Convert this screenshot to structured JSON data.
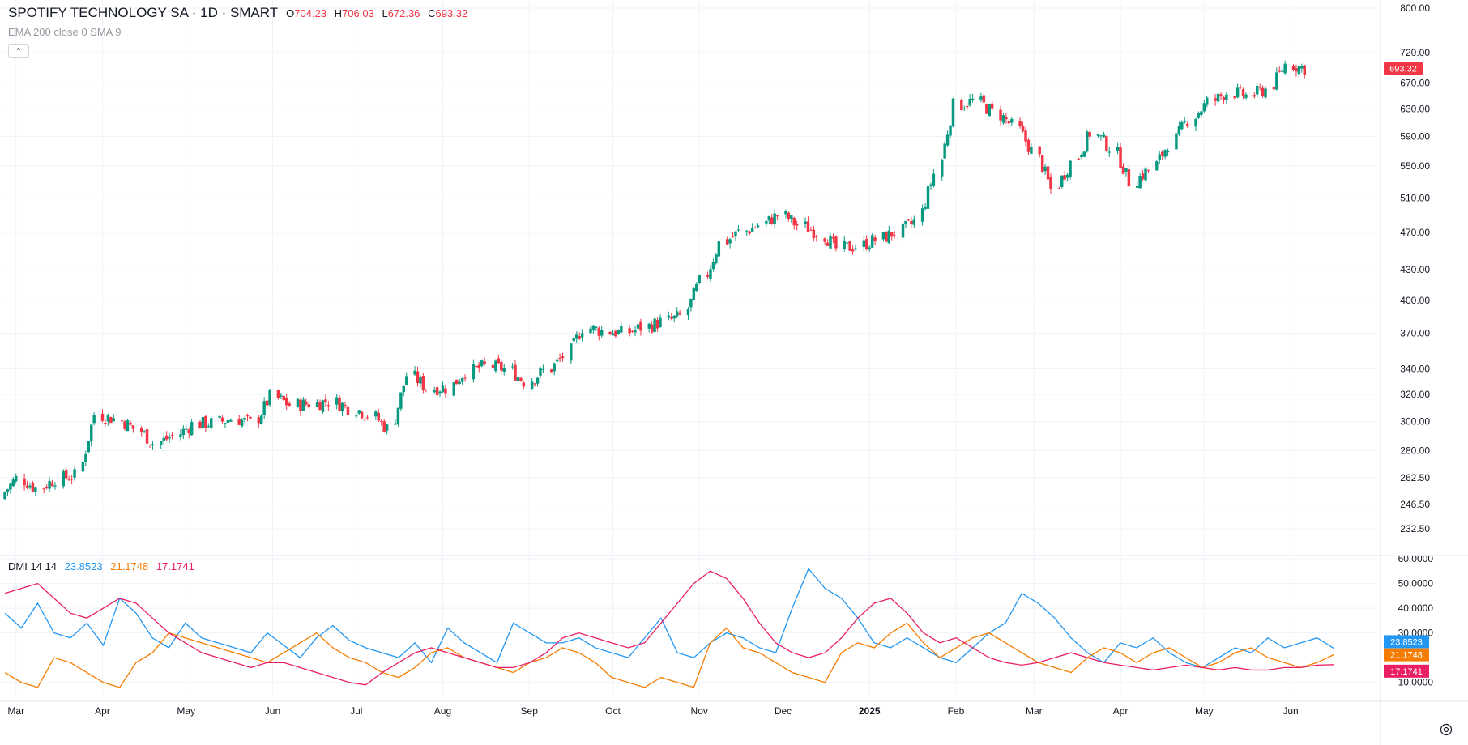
{
  "header": {
    "symbol": "SPOTIFY TECHNOLOGY SA · 1D · SMART",
    "open_label": "O",
    "open": "704.23",
    "high_label": "H",
    "high": "706.03",
    "low_label": "L",
    "low": "672.36",
    "close_label": "C",
    "close": "693.32",
    "indicators_line": "EMA 200 close 0 SMA 9",
    "collapse_icon": "chevron-up-icon"
  },
  "dmi": {
    "label": "DMI 14 14",
    "plus_di": "23.8523",
    "minus_di": "21.1748",
    "adx": "17.1741",
    "colors": {
      "plus_di": "#2196f3",
      "minus_di": "#f57c00",
      "adx": "#e91e63"
    }
  },
  "last_price": "693.32",
  "settings_icon": "gear-icon",
  "colors": {
    "up": "#089981",
    "down": "#f23645",
    "grid": "#f0f3fa",
    "axis_text": "#131722"
  },
  "chart_data": [
    {
      "type": "candlestick",
      "title": "SPOTIFY TECHNOLOGY SA · 1D · SMART",
      "y_scale": "log",
      "ylim": [
        220,
        800
      ],
      "y_ticks": [
        "800.00",
        "720.00",
        "670.00",
        "630.00",
        "590.00",
        "550.00",
        "510.00",
        "470.00",
        "430.00",
        "400.00",
        "370.00",
        "340.00",
        "320.00",
        "300.00",
        "280.00",
        "262.50",
        "246.50",
        "232.50"
      ],
      "x_ticks": [
        "Mar",
        "Apr",
        "May",
        "Jun",
        "Jul",
        "Aug",
        "Sep",
        "Oct",
        "Nov",
        "Dec",
        "2025",
        "Feb",
        "Mar",
        "Apr",
        "May",
        "Jun"
      ],
      "x_range": [
        "2024-02-26",
        "2025-06-28"
      ],
      "grid": true,
      "last_price_label": "693.32",
      "closes_weekly": [
        {
          "date": "2024-02-26",
          "close": 252
        },
        {
          "date": "2024-03-04",
          "close": 262
        },
        {
          "date": "2024-03-11",
          "close": 256
        },
        {
          "date": "2024-03-18",
          "close": 262
        },
        {
          "date": "2024-03-25",
          "close": 264
        },
        {
          "date": "2024-04-01",
          "close": 305
        },
        {
          "date": "2024-04-08",
          "close": 302
        },
        {
          "date": "2024-04-15",
          "close": 295
        },
        {
          "date": "2024-04-22",
          "close": 285
        },
        {
          "date": "2024-04-29",
          "close": 290
        },
        {
          "date": "2024-05-06",
          "close": 298
        },
        {
          "date": "2024-05-13",
          "close": 299
        },
        {
          "date": "2024-05-20",
          "close": 302
        },
        {
          "date": "2024-05-27",
          "close": 299
        },
        {
          "date": "2024-06-03",
          "close": 318
        },
        {
          "date": "2024-06-10",
          "close": 312
        },
        {
          "date": "2024-06-17",
          "close": 313
        },
        {
          "date": "2024-06-24",
          "close": 315
        },
        {
          "date": "2024-07-01",
          "close": 310
        },
        {
          "date": "2024-07-08",
          "close": 305
        },
        {
          "date": "2024-07-15",
          "close": 295
        },
        {
          "date": "2024-07-22",
          "close": 335
        },
        {
          "date": "2024-07-29",
          "close": 325
        },
        {
          "date": "2024-08-05",
          "close": 325
        },
        {
          "date": "2024-08-12",
          "close": 338
        },
        {
          "date": "2024-08-19",
          "close": 342
        },
        {
          "date": "2024-08-26",
          "close": 340
        },
        {
          "date": "2024-09-02",
          "close": 330
        },
        {
          "date": "2024-09-09",
          "close": 338
        },
        {
          "date": "2024-09-16",
          "close": 350
        },
        {
          "date": "2024-09-23",
          "close": 375
        },
        {
          "date": "2024-09-30",
          "close": 372
        },
        {
          "date": "2024-10-07",
          "close": 370
        },
        {
          "date": "2024-10-14",
          "close": 375
        },
        {
          "date": "2024-10-21",
          "close": 380
        },
        {
          "date": "2024-10-28",
          "close": 385
        },
        {
          "date": "2024-11-04",
          "close": 418
        },
        {
          "date": "2024-11-11",
          "close": 458
        },
        {
          "date": "2024-11-18",
          "close": 470
        },
        {
          "date": "2024-11-25",
          "close": 478
        },
        {
          "date": "2024-12-02",
          "close": 490
        },
        {
          "date": "2024-12-09",
          "close": 478
        },
        {
          "date": "2024-12-16",
          "close": 470
        },
        {
          "date": "2024-12-23",
          "close": 452
        },
        {
          "date": "2024-12-30",
          "close": 455
        },
        {
          "date": "2025-01-06",
          "close": 462
        },
        {
          "date": "2025-01-13",
          "close": 470
        },
        {
          "date": "2025-01-20",
          "close": 482
        },
        {
          "date": "2025-01-27",
          "close": 540
        },
        {
          "date": "2025-02-03",
          "close": 635
        },
        {
          "date": "2025-02-10",
          "close": 642
        },
        {
          "date": "2025-02-17",
          "close": 625
        },
        {
          "date": "2025-02-24",
          "close": 605
        },
        {
          "date": "2025-03-03",
          "close": 570
        },
        {
          "date": "2025-03-10",
          "close": 520
        },
        {
          "date": "2025-03-17",
          "close": 555
        },
        {
          "date": "2025-03-24",
          "close": 595
        },
        {
          "date": "2025-03-31",
          "close": 575
        },
        {
          "date": "2025-04-07",
          "close": 530
        },
        {
          "date": "2025-04-14",
          "close": 545
        },
        {
          "date": "2025-04-21",
          "close": 580
        },
        {
          "date": "2025-04-28",
          "close": 615
        },
        {
          "date": "2025-05-05",
          "close": 640
        },
        {
          "date": "2025-05-12",
          "close": 655
        },
        {
          "date": "2025-05-19",
          "close": 650
        },
        {
          "date": "2025-05-26",
          "close": 660
        },
        {
          "date": "2025-06-02",
          "close": 700
        },
        {
          "date": "2025-06-09",
          "close": 693.32
        }
      ]
    },
    {
      "type": "line",
      "title": "DMI 14 14",
      "ylim": [
        5,
        60
      ],
      "y_ticks": [
        "60.0000",
        "50.0000",
        "40.0000",
        "30.0000",
        "10.0000"
      ],
      "grid": true,
      "last_values": {
        "plus_di": "23.8523",
        "minus_di": "21.1748",
        "adx": "17.1741"
      },
      "series": [
        {
          "name": "plus_di",
          "color": "#2196f3",
          "values": [
            38,
            32,
            42,
            30,
            28,
            34,
            25,
            44,
            38,
            28,
            24,
            34,
            28,
            26,
            24,
            22,
            30,
            25,
            20,
            28,
            33,
            27,
            24,
            22,
            20,
            26,
            18,
            32,
            26,
            22,
            18,
            34,
            30,
            26,
            26,
            28,
            24,
            22,
            20,
            28,
            36,
            22,
            20,
            26,
            30,
            28,
            24,
            22,
            40,
            56,
            48,
            44,
            36,
            26,
            24,
            28,
            24,
            20,
            18,
            24,
            30,
            34,
            46,
            42,
            36,
            28,
            22,
            18,
            26,
            24,
            28,
            22,
            18,
            16,
            20,
            24,
            22,
            28,
            24,
            26,
            28,
            23.85
          ]
        },
        {
          "name": "minus_di",
          "color": "#f57c00",
          "values": [
            14,
            10,
            8,
            20,
            18,
            14,
            10,
            8,
            18,
            22,
            30,
            28,
            26,
            24,
            22,
            20,
            18,
            22,
            26,
            30,
            24,
            20,
            18,
            14,
            12,
            16,
            22,
            24,
            20,
            18,
            16,
            14,
            18,
            20,
            24,
            22,
            18,
            12,
            10,
            8,
            12,
            10,
            8,
            26,
            32,
            24,
            22,
            18,
            14,
            12,
            10,
            22,
            26,
            24,
            30,
            34,
            26,
            20,
            24,
            28,
            30,
            26,
            22,
            18,
            16,
            14,
            20,
            24,
            22,
            18,
            22,
            24,
            20,
            16,
            18,
            22,
            24,
            20,
            18,
            16,
            18,
            21.17
          ]
        },
        {
          "name": "adx",
          "color": "#e91e63",
          "values": [
            46,
            48,
            50,
            44,
            38,
            36,
            40,
            44,
            42,
            36,
            30,
            26,
            22,
            20,
            18,
            16,
            18,
            18,
            16,
            14,
            12,
            10,
            9,
            14,
            18,
            22,
            24,
            22,
            20,
            18,
            16,
            16,
            18,
            22,
            28,
            30,
            28,
            26,
            24,
            26,
            34,
            42,
            50,
            55,
            52,
            44,
            34,
            26,
            22,
            20,
            22,
            28,
            36,
            42,
            44,
            38,
            30,
            26,
            28,
            24,
            20,
            18,
            17,
            18,
            20,
            22,
            20,
            18,
            17,
            16,
            15,
            16,
            17,
            16,
            15,
            16,
            15,
            15,
            16,
            16,
            17,
            17.17
          ]
        }
      ]
    }
  ]
}
